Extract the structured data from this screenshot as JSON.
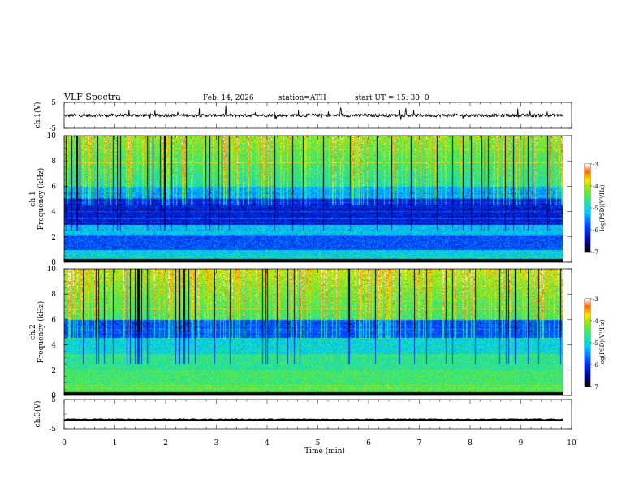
{
  "header": {
    "title": "VLF  Spectra",
    "date": "Feb. 14, 2026",
    "station": "station=ATH",
    "start": "start  UT  =   15: 30: 0"
  },
  "chart_data": [
    {
      "type": "line",
      "name": "ch1-waveform",
      "ylabel": "ch.1(V)",
      "ylim": [
        -5,
        5
      ],
      "yticks": [
        "5",
        "-5"
      ],
      "xlim": [
        0,
        10
      ],
      "mean_level": 0,
      "amplitude": 1.2
    },
    {
      "type": "heatmap",
      "name": "ch1-spectrogram",
      "ylabel": "ch.1\nFrequency  (kHz)",
      "ylim": [
        0,
        10
      ],
      "yticks": [
        "0",
        "2",
        "4",
        "6",
        "8",
        "10"
      ],
      "xlim": [
        0,
        9.8
      ],
      "colorbar": {
        "label": "log(PSD)(V²/Hz)",
        "range": [
          -7,
          -3
        ],
        "ticks": [
          "-3",
          "-4",
          "-5",
          "-6",
          "-7"
        ]
      }
    },
    {
      "type": "heatmap",
      "name": "ch2-spectrogram",
      "ylabel": "ch.2\nFrequency  (kHz)",
      "ylim": [
        0,
        10
      ],
      "yticks": [
        "0",
        "2",
        "4",
        "6",
        "8",
        "10"
      ],
      "xlim": [
        0,
        9.8
      ],
      "colorbar": {
        "label": "log(PSD)(V²/Hz)",
        "range": [
          -7,
          -3
        ],
        "ticks": [
          "-3",
          "-4",
          "-5",
          "-6",
          "-7"
        ]
      }
    },
    {
      "type": "line",
      "name": "ch3-waveform",
      "ylabel": "ch.3(V)",
      "ylim": [
        -5,
        5
      ],
      "yticks": [
        "5",
        "-5"
      ],
      "xlim": [
        0,
        10
      ],
      "mean_level": -2,
      "amplitude": 0.3
    }
  ],
  "xaxis": {
    "label": "Time  (min)",
    "ticks": [
      "0",
      "1",
      "2",
      "3",
      "4",
      "5",
      "6",
      "7",
      "8",
      "9",
      "10"
    ],
    "range": [
      0,
      10
    ]
  }
}
